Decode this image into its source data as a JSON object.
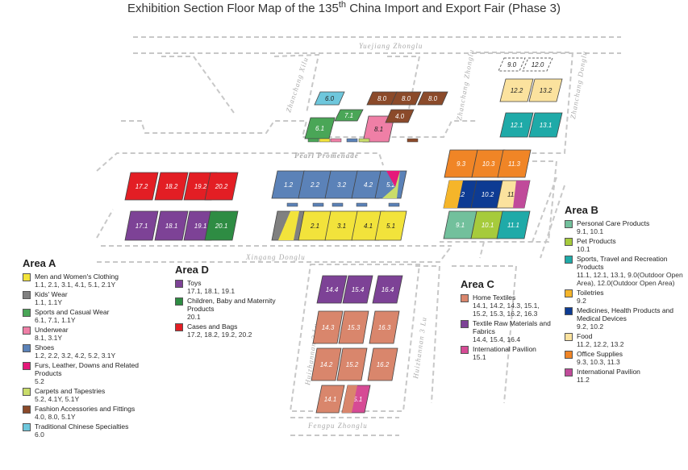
{
  "title": {
    "main": "Exhibition Section Floor Map of the 135",
    "sup": "th",
    "tail": " China Import and Export Fair  (Phase 3)"
  },
  "roads": {
    "yuejiang": "Yuejiang Zhonglu",
    "pearl": "Pearl Promenade",
    "xingang": "Xingang Donglu",
    "fengpu": "Fengpu Zhonglu",
    "zhanchang_xilu": "Zhanchang Xilu",
    "zhanchang_zhonglu": "Zhanchang Zhonglu",
    "zhanchang_donglu": "Zhanchang Donglu",
    "huizhanman2": "Huizhannan 2 Lu",
    "huizhanman3": "Huizhannan 3 Lu"
  },
  "colors": {
    "yellow": "#f2e33b",
    "gray": "#808080",
    "green": "#4aa657",
    "pink": "#ef7fa6",
    "blue": "#5b82b8",
    "magenta": "#e5197a",
    "lime": "#c9dc6a",
    "brown": "#8b4a2a",
    "cyan": "#6ec7dc",
    "purple": "#7d4296",
    "dkgreen": "#2e8c43",
    "red": "#e31e24",
    "salmon": "#d9866c",
    "purple2": "#7d4296",
    "mpink": "#d64b95",
    "mint": "#72c09c",
    "lgreen": "#a6cb3c",
    "teal": "#1faaa8",
    "gold": "#f5b52a",
    "navy": "#0d3b93",
    "cream": "#fbe29e",
    "orange": "#f08526",
    "violet": "#c04b9a"
  },
  "booths": [
    {
      "label": "6.0",
      "color": "cyan"
    },
    {
      "label": "7.1",
      "color": "green"
    },
    {
      "label": "6.1",
      "color": "green"
    },
    {
      "label": "8.1",
      "color": "pink"
    },
    {
      "label": "8.0",
      "color": "brown"
    },
    {
      "label": "8.0",
      "color": "brown"
    },
    {
      "label": "8.0",
      "color": "brown"
    },
    {
      "label": "4.0",
      "color": "brown"
    },
    {
      "label": "9.0",
      "color": "outline"
    },
    {
      "label": "12.0",
      "color": "outline"
    },
    {
      "label": "12.2",
      "color": "cream"
    },
    {
      "label": "13.2",
      "color": "cream"
    },
    {
      "label": "12.1",
      "color": "teal"
    },
    {
      "label": "13.1",
      "color": "teal"
    },
    {
      "label": "17.2",
      "color": "red"
    },
    {
      "label": "18.2",
      "color": "red"
    },
    {
      "label": "19.2",
      "color": "red"
    },
    {
      "label": "20.2",
      "color": "red"
    },
    {
      "label": "17.1",
      "color": "purple"
    },
    {
      "label": "18.1",
      "color": "purple"
    },
    {
      "label": "19.1",
      "color": "purple"
    },
    {
      "label": "20.1",
      "color": "dkgreen"
    },
    {
      "label": "1.2",
      "color": "blue"
    },
    {
      "label": "2.2",
      "color": "blue"
    },
    {
      "label": "3.2",
      "color": "blue"
    },
    {
      "label": "4.2",
      "color": "blue"
    },
    {
      "label": "5.2",
      "color": "blue"
    },
    {
      "label": "1.1",
      "color": "gray"
    },
    {
      "label": "2.1",
      "color": "yellow"
    },
    {
      "label": "3.1",
      "color": "yellow"
    },
    {
      "label": "4.1",
      "color": "yellow"
    },
    {
      "label": "5.1",
      "color": "yellow"
    },
    {
      "label": "9.3",
      "color": "orange"
    },
    {
      "label": "10.3",
      "color": "orange"
    },
    {
      "label": "11.3",
      "color": "orange"
    },
    {
      "label": "9.2",
      "color": "navy"
    },
    {
      "label": "10.2",
      "color": "navy"
    },
    {
      "label": "11.2",
      "color": "cream"
    },
    {
      "label": "9.1",
      "color": "mint"
    },
    {
      "label": "10.1",
      "color": "lgreen"
    },
    {
      "label": "11.1",
      "color": "teal"
    },
    {
      "label": "14.4",
      "color": "purple2"
    },
    {
      "label": "15.4",
      "color": "purple2"
    },
    {
      "label": "16.4",
      "color": "purple2"
    },
    {
      "label": "14.3",
      "color": "salmon"
    },
    {
      "label": "15.3",
      "color": "salmon"
    },
    {
      "label": "16.3",
      "color": "salmon"
    },
    {
      "label": "14.2",
      "color": "salmon"
    },
    {
      "label": "15.2",
      "color": "salmon"
    },
    {
      "label": "16.2",
      "color": "salmon"
    },
    {
      "label": "14.1",
      "color": "salmon"
    },
    {
      "label": "15.1",
      "color": "mpink"
    }
  ],
  "legend": {
    "areaA": {
      "title": "Area A",
      "items": [
        {
          "name": "Men and Women's Clothing",
          "codes": "1.1, 2.1, 3.1, 4.1, 5.1, 2.1Y",
          "color": "#f2e33b"
        },
        {
          "name": "Kids' Wear",
          "codes": "1.1, 1.1Y",
          "color": "#808080"
        },
        {
          "name": "Sports and Casual Wear",
          "codes": "6.1, 7.1, 1.1Y",
          "color": "#4aa657"
        },
        {
          "name": "Underwear",
          "codes": "8.1, 3.1Y",
          "color": "#ef7fa6"
        },
        {
          "name": "Shoes",
          "codes": "1.2, 2.2, 3.2, 4.2, 5.2, 3.1Y",
          "color": "#5b82b8"
        },
        {
          "name": "Furs, Leather, Downs and Related Products",
          "codes": "5.2",
          "color": "#e5197a"
        },
        {
          "name": "Carpets and Tapestries",
          "codes": "5.2, 4.1Y, 5.1Y",
          "color": "#c9dc6a"
        },
        {
          "name": "Fashion Accessories and Fittings",
          "codes": "4.0, 8.0, 5.1Y",
          "color": "#8b4a2a"
        },
        {
          "name": "Traditional Chinese Specialties",
          "codes": "6.0",
          "color": "#6ec7dc"
        }
      ]
    },
    "areaD": {
      "title": "Area D",
      "items": [
        {
          "name": "Toys",
          "codes": "17.1, 18.1, 19.1",
          "color": "#7d4296"
        },
        {
          "name": "Children, Baby and Maternity Products",
          "codes": "20.1",
          "color": "#2e8c43"
        },
        {
          "name": "Cases and Bags",
          "codes": "17.2, 18.2, 19.2, 20.2",
          "color": "#e31e24"
        }
      ]
    },
    "areaC": {
      "title": "Area C",
      "items": [
        {
          "name": "Home Textiles",
          "codes": "14.1, 14.2, 14.3, 15.1, 15.2, 15.3, 16.2, 16.3",
          "color": "#d9866c"
        },
        {
          "name": "Textile Raw Materials and Fabrics",
          "codes": "14.4, 15.4, 16.4",
          "color": "#7d4296"
        },
        {
          "name": "International Pavilion",
          "codes": "15.1",
          "color": "#d64b95"
        }
      ]
    },
    "areaB": {
      "title": "Area B",
      "items": [
        {
          "name": "Personal Care Products",
          "codes": "9.1, 10.1",
          "color": "#72c09c"
        },
        {
          "name": "Pet Products",
          "codes": "10.1",
          "color": "#a6cb3c"
        },
        {
          "name": "Sports, Travel and Recreation Products",
          "codes": "11.1, 12.1, 13.1, 9.0(Outdoor Open Area), 12.0(Outdoor Open Area)",
          "color": "#1faaa8"
        },
        {
          "name": "Toiletries",
          "codes": "9.2",
          "color": "#f5b52a"
        },
        {
          "name": "Medicines, Health Products and Medical Devices",
          "codes": "9.2, 10.2",
          "color": "#0d3b93"
        },
        {
          "name": "Food",
          "codes": "11.2, 12.2, 13.2",
          "color": "#fbe29e"
        },
        {
          "name": "Office Supplies",
          "codes": "9.3, 10.3, 11.3",
          "color": "#f08526"
        },
        {
          "name": "International Pavilion",
          "codes": "11.2",
          "color": "#c04b9a"
        }
      ]
    }
  }
}
